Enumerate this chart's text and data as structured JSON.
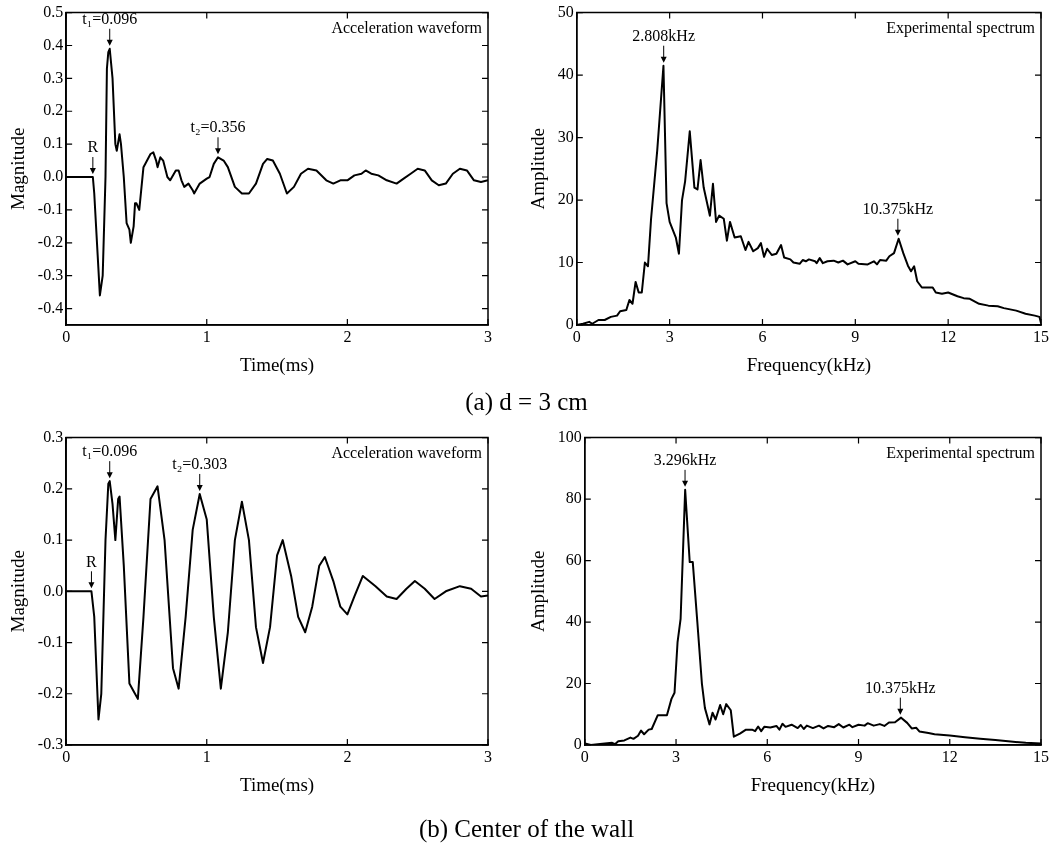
{
  "chart_data": [
    {
      "type": "line",
      "title": "Acceleration waveform",
      "xlabel": "Time(ms)",
      "ylabel": "Magnitude",
      "xlim": [
        0,
        3
      ],
      "xticks": [
        0,
        1,
        2,
        3
      ],
      "ylim": [
        -0.45,
        0.5
      ],
      "yticks": [
        -0.4,
        -0.3,
        -0.2,
        -0.1,
        {
          "value": 0,
          "label": "0.0"
        },
        0.1,
        0.2,
        0.3,
        0.4,
        0.5
      ],
      "legend": false,
      "marker": "none",
      "line_style": "solid",
      "annotations": [
        {
          "text": "R",
          "x": 0.19,
          "y": 0
        },
        {
          "text": "t₁=0.096",
          "x": 0.31,
          "y": 0.39
        },
        {
          "text": "t₂=0.356",
          "x": 1.08,
          "y": 0.06
        },
        "(a)  d = 3 cm"
      ],
      "series": [
        {
          "color": "#000000",
          "x": [
            0,
            0.19,
            0.2,
            0.24,
            0.26,
            0.28,
            0.29,
            0.3,
            0.31,
            0.33,
            0.35,
            0.36,
            0.38,
            0.39,
            0.41,
            0.43,
            0.45,
            0.46,
            0.48,
            0.49,
            0.5,
            0.52,
            0.55,
            0.6,
            0.62,
            0.64,
            0.65,
            0.67,
            0.69,
            0.72,
            0.74,
            0.78,
            0.8,
            0.82,
            0.84,
            0.87,
            0.9,
            0.91,
            0.95,
            1.0,
            1.02,
            1.05,
            1.08,
            1.12,
            1.15,
            1.2,
            1.25,
            1.3,
            1.35,
            1.4,
            1.43,
            1.47,
            1.52,
            1.57,
            1.62,
            1.67,
            1.72,
            1.78,
            1.85,
            1.9,
            1.95,
            2.0,
            2.05,
            2.1,
            2.13,
            2.17,
            2.22,
            2.28,
            2.35,
            2.4,
            2.45,
            2.5,
            2.55,
            2.6,
            2.65,
            2.7,
            2.75,
            2.8,
            2.85,
            2.9,
            2.95,
            3.0
          ],
          "values": [
            0,
            0,
            -0.05,
            -0.36,
            -0.3,
            0,
            0.33,
            0.38,
            0.39,
            0.3,
            0.1,
            0.08,
            0.13,
            0.1,
            0,
            -0.14,
            -0.16,
            -0.2,
            -0.15,
            -0.08,
            -0.08,
            -0.1,
            0.03,
            0.07,
            0.075,
            0.05,
            0.03,
            0.06,
            0.05,
            0,
            -0.01,
            0.02,
            0.02,
            -0.01,
            -0.03,
            -0.02,
            -0.04,
            -0.05,
            -0.02,
            -0.005,
            0,
            0.04,
            0.06,
            0.05,
            0.03,
            -0.03,
            -0.05,
            -0.05,
            -0.02,
            0.04,
            0.055,
            0.05,
            0.01,
            -0.05,
            -0.03,
            0.01,
            0.025,
            0.02,
            -0.01,
            -0.02,
            -0.01,
            -0.01,
            0.005,
            0.01,
            0.02,
            0.01,
            0.005,
            -0.01,
            -0.02,
            -0.005,
            0.01,
            0.025,
            0.02,
            -0.01,
            -0.025,
            -0.02,
            0.01,
            0.025,
            0.02,
            -0.01,
            -0.015,
            -0.01
          ]
        }
      ]
    },
    {
      "type": "line",
      "title": "Experimental spectrum",
      "xlabel": "Frequency(kHz)",
      "ylabel": "Amplitude",
      "xlim": [
        0,
        15
      ],
      "xticks": [
        0,
        3,
        6,
        9,
        12,
        15
      ],
      "ylim": [
        0,
        50
      ],
      "yticks": [
        0,
        10,
        20,
        30,
        40,
        50
      ],
      "legend": false,
      "marker": "none",
      "line_style": "solid",
      "annotations": [
        {
          "text": "2.808kHz",
          "x": 2.808,
          "y": 41.5
        },
        {
          "text": "10.375kHz",
          "x": 10.375,
          "y": 13.8
        }
      ],
      "series": [
        {
          "color": "#000000",
          "x": [
            0,
            0.2,
            0.4,
            0.5,
            0.7,
            0.9,
            1.1,
            1.3,
            1.4,
            1.6,
            1.7,
            1.8,
            1.9,
            2.0,
            2.1,
            2.2,
            2.3,
            2.4,
            2.6,
            2.8,
            2.9,
            3.0,
            3.2,
            3.3,
            3.4,
            3.5,
            3.65,
            3.8,
            3.9,
            4.0,
            4.1,
            4.3,
            4.4,
            4.5,
            4.6,
            4.75,
            4.85,
            4.95,
            5.1,
            5.3,
            5.45,
            5.55,
            5.7,
            5.85,
            5.95,
            6.05,
            6.15,
            6.3,
            6.45,
            6.6,
            6.7,
            6.9,
            7.0,
            7.2,
            7.3,
            7.4,
            7.5,
            7.7,
            7.75,
            7.85,
            7.95,
            8.1,
            8.3,
            8.45,
            8.6,
            8.75,
            9.0,
            9.1,
            9.4,
            9.6,
            9.7,
            9.8,
            10.0,
            10.1,
            10.25,
            10.4,
            10.55,
            10.7,
            10.8,
            10.9,
            11.0,
            11.15,
            11.5,
            11.6,
            11.8,
            12.0,
            12.3,
            12.5,
            12.7,
            13.0,
            13.3,
            13.6,
            13.8,
            14.2,
            14.5,
            14.8,
            14.95,
            15
          ],
          "values": [
            0,
            0.2,
            0.5,
            0.2,
            0.8,
            0.8,
            1.3,
            1.5,
            2.2,
            2.4,
            4,
            3.4,
            6.9,
            5.2,
            5.2,
            10,
            9.4,
            17,
            28,
            41.5,
            19.5,
            16.5,
            14,
            11.4,
            20,
            23,
            31,
            22,
            21.7,
            26.4,
            22,
            17.5,
            22.6,
            16.5,
            17.5,
            17,
            13.5,
            16.5,
            14,
            14.2,
            12,
            13.3,
            11.8,
            12.3,
            13.1,
            10.9,
            12.2,
            11.2,
            11.4,
            12.8,
            10.8,
            10.5,
            10,
            9.8,
            10.4,
            10.2,
            10.5,
            10.2,
            9.9,
            10.7,
            9.9,
            10.2,
            10.3,
            10,
            10.3,
            9.7,
            10.2,
            9.8,
            9.7,
            10.2,
            9.7,
            10.4,
            10.3,
            11,
            11.5,
            13.8,
            11.5,
            9.5,
            8.6,
            9.4,
            7,
            6,
            6,
            5.2,
            5,
            5.2,
            4.6,
            4.3,
            4.2,
            3.4,
            3.1,
            3,
            2.7,
            2.3,
            1.8,
            1.5,
            1.3,
            0.3
          ]
        }
      ]
    },
    {
      "type": "line",
      "title": "Acceleration waveform",
      "xlabel": "Time(ms)",
      "ylabel": "Magnitude",
      "xlim": [
        0,
        3
      ],
      "xticks": [
        0,
        1,
        2,
        3
      ],
      "ylim": [
        -0.3,
        0.3
      ],
      "yticks": [
        -0.3,
        -0.2,
        -0.1,
        {
          "value": 0,
          "label": "0.0"
        },
        0.1,
        0.2,
        0.3
      ],
      "legend": false,
      "marker": "none",
      "line_style": "solid",
      "annotations": [
        {
          "text": "R",
          "x": 0.18,
          "y": 0
        },
        {
          "text": "t₁=0.096",
          "x": 0.31,
          "y": 0.215
        },
        {
          "text": "t₂=0.303",
          "x": 0.95,
          "y": 0.19
        },
        "(b) Center of the wall"
      ],
      "series": [
        {
          "color": "#000000",
          "x": [
            0,
            0.18,
            0.2,
            0.23,
            0.25,
            0.28,
            0.3,
            0.31,
            0.33,
            0.35,
            0.37,
            0.38,
            0.41,
            0.45,
            0.48,
            0.51,
            0.55,
            0.6,
            0.65,
            0.7,
            0.76,
            0.8,
            0.85,
            0.9,
            0.95,
            1.0,
            1.05,
            1.1,
            1.15,
            1.2,
            1.25,
            1.3,
            1.35,
            1.4,
            1.45,
            1.5,
            1.54,
            1.6,
            1.65,
            1.7,
            1.75,
            1.8,
            1.84,
            1.9,
            1.95,
            2.0,
            2.05,
            2.11,
            2.2,
            2.28,
            2.35,
            2.42,
            2.48,
            2.55,
            2.62,
            2.7,
            2.8,
            2.88,
            2.95,
            3.0
          ],
          "values": [
            0,
            0,
            -0.05,
            -0.25,
            -0.2,
            0.1,
            0.21,
            0.215,
            0.17,
            0.1,
            0.18,
            0.185,
            0.05,
            -0.18,
            -0.195,
            -0.21,
            -0.05,
            0.18,
            0.205,
            0.1,
            -0.15,
            -0.19,
            -0.05,
            0.12,
            0.19,
            0.14,
            -0.05,
            -0.19,
            -0.08,
            0.1,
            0.175,
            0.1,
            -0.07,
            -0.14,
            -0.07,
            0.07,
            0.1,
            0.03,
            -0.05,
            -0.08,
            -0.03,
            0.05,
            0.067,
            0.02,
            -0.03,
            -0.045,
            -0.01,
            0.03,
            0.01,
            -0.01,
            -0.015,
            0.005,
            0.02,
            0.005,
            -0.015,
            0,
            0.01,
            0.005,
            -0.01,
            -0.008
          ]
        }
      ]
    },
    {
      "type": "line",
      "title": "Experimental spectrum",
      "xlabel": "Frequency(kHz)",
      "ylabel": "Amplitude",
      "xlim": [
        0,
        15
      ],
      "xticks": [
        0,
        3,
        6,
        9,
        12,
        15
      ],
      "ylim": [
        0,
        100
      ],
      "yticks": [
        0,
        20,
        40,
        60,
        80,
        100
      ],
      "legend": false,
      "marker": "none",
      "line_style": "solid",
      "annotations": [
        {
          "text": "3.296kHz",
          "x": 3.296,
          "y": 83
        },
        {
          "text": "10.375kHz",
          "x": 10.375,
          "y": 8.9
        }
      ],
      "series": [
        {
          "color": "#000000",
          "x": [
            0,
            0.2,
            0.5,
            0.9,
            1.0,
            1.1,
            1.3,
            1.5,
            1.6,
            1.75,
            1.85,
            1.95,
            2.1,
            2.2,
            2.4,
            2.6,
            2.7,
            2.85,
            2.95,
            3.05,
            3.15,
            3.3,
            3.45,
            3.55,
            3.7,
            3.85,
            3.95,
            4.1,
            4.2,
            4.3,
            4.45,
            4.55,
            4.65,
            4.8,
            4.9,
            5.1,
            5.3,
            5.5,
            5.6,
            5.7,
            5.8,
            5.9,
            6.1,
            6.3,
            6.4,
            6.5,
            6.6,
            6.8,
            7.0,
            7.1,
            7.2,
            7.3,
            7.5,
            7.7,
            7.85,
            8.0,
            8.2,
            8.35,
            8.5,
            8.7,
            8.8,
            9.0,
            9.2,
            9.3,
            9.5,
            9.7,
            9.85,
            10.0,
            10.2,
            10.4,
            10.6,
            10.75,
            10.9,
            11.0,
            11.3,
            11.5,
            12.0,
            12.5,
            13.0,
            13.5,
            14.0,
            14.5,
            15
          ],
          "values": [
            0.5,
            0,
            0.3,
            0.7,
            0.3,
            1.2,
            1.5,
            2.4,
            2,
            3,
            4.7,
            3.5,
            5,
            5.2,
            9.7,
            9.7,
            9.7,
            15,
            17,
            33.5,
            41,
            83,
            59.5,
            59.5,
            40,
            20,
            12,
            6.7,
            10.5,
            8.3,
            13,
            10,
            13.3,
            11.3,
            2.7,
            3.7,
            5,
            5,
            4.5,
            6,
            4.5,
            5.9,
            5.7,
            6.2,
            5,
            6.9,
            5.9,
            6.6,
            5.5,
            6.5,
            5.2,
            6.3,
            5.5,
            6.3,
            5.4,
            6.2,
            5.8,
            6.8,
            5.7,
            6.6,
            5.8,
            6.6,
            6.3,
            7.1,
            6.3,
            6.8,
            6.2,
            7.3,
            7.4,
            8.9,
            7.2,
            5.4,
            5.6,
            4.4,
            3.9,
            3.5,
            3.1,
            2.5,
            2,
            1.6,
            1.1,
            0.7,
            0.5
          ]
        }
      ]
    }
  ]
}
